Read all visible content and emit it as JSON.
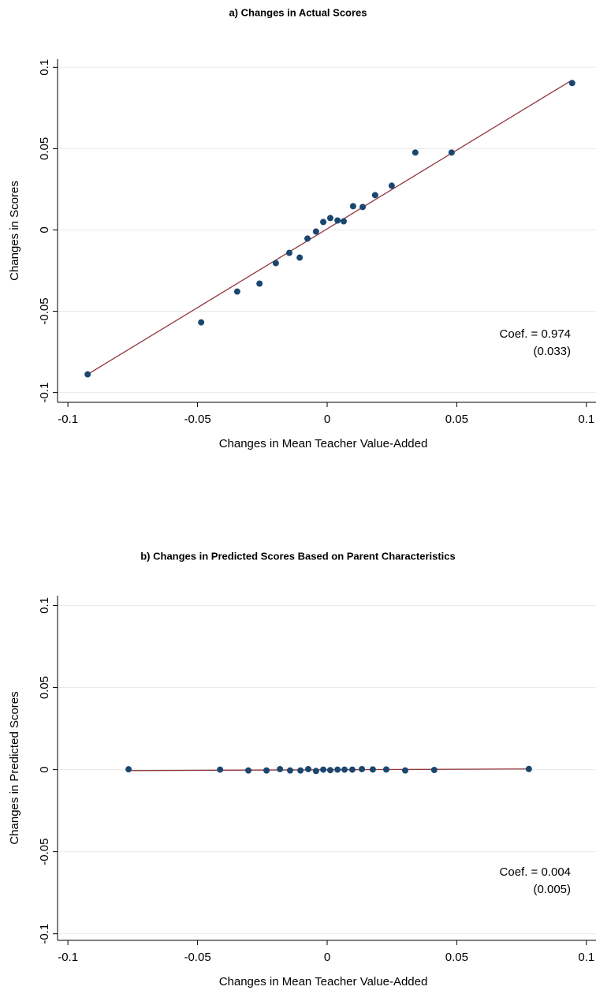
{
  "chart_data": [
    {
      "type": "scatter",
      "title": "a) Changes in Actual Scores",
      "x_label": "Changes in Mean Teacher Value-Added",
      "y_label": "Changes in Scores",
      "x": [
        -0.0924,
        -0.0486,
        -0.0347,
        -0.0261,
        -0.0198,
        -0.0146,
        -0.0106,
        -0.0076,
        -0.0043,
        -0.0015,
        0.0012,
        0.004,
        0.0064,
        0.01,
        0.0137,
        0.0185,
        0.0249,
        0.034,
        0.048,
        0.0945
      ],
      "values": [
        -0.0888,
        -0.0568,
        -0.0379,
        -0.033,
        -0.0204,
        -0.0141,
        -0.017,
        -0.0053,
        -0.001,
        0.0049,
        0.0073,
        0.0058,
        0.0053,
        0.0146,
        0.0141,
        0.0214,
        0.0272,
        0.0476,
        0.0476,
        0.0903
      ],
      "color": "#1a476f",
      "fit_line": {
        "x": [
          -0.0924,
          0.0945
        ],
        "y": [
          -0.0888,
          0.0922
        ],
        "color": "#90353b"
      },
      "annotations": [
        "Coef. = 0.974",
        "(0.033)"
      ],
      "xlim": [
        -0.104,
        0.1037
      ],
      "ylim": [
        -0.106,
        0.105
      ],
      "xticks": [
        -0.1,
        -0.05,
        0,
        0.05,
        0.1
      ],
      "yticks": [
        -0.1,
        -0.05,
        0,
        0.05,
        0.1
      ],
      "grid": true
    },
    {
      "type": "scatter",
      "title": "b) Changes in Predicted Scores Based on Parent Characteristics",
      "x_label": "Changes in Mean Teacher Value-Added",
      "y_label": "Changes in Predicted Scores",
      "x": [
        -0.0766,
        -0.0413,
        -0.0304,
        -0.0234,
        -0.0182,
        -0.0143,
        -0.0103,
        -0.0073,
        -0.0043,
        -0.0015,
        0.0012,
        0.004,
        0.0067,
        0.0097,
        0.0134,
        0.0176,
        0.0228,
        0.0301,
        0.0413,
        0.0778
      ],
      "values": [
        0.0002,
        0,
        -0.0005,
        -0.0005,
        0.0003,
        -0.0005,
        -0.0005,
        0.0003,
        -0.0008,
        0,
        -0.0003,
        0,
        0,
        0,
        0.0003,
        0.0001,
        0.0001,
        -0.0005,
        -0.0002,
        0.0004
      ],
      "color": "#1a476f",
      "fit_line": {
        "x": [
          -0.0766,
          0.0778
        ],
        "y": [
          -0.0006,
          0.0004
        ],
        "color": "#90353b"
      },
      "annotations": [
        "Coef. = 0.004",
        "(0.005)"
      ],
      "xlim": [
        -0.104,
        0.1037
      ],
      "ylim": [
        -0.104,
        0.106
      ],
      "xticks": [
        -0.1,
        -0.05,
        0,
        0.05,
        0.1
      ],
      "yticks": [
        -0.1,
        -0.05,
        0,
        0.05,
        0.1
      ],
      "grid": true
    }
  ]
}
